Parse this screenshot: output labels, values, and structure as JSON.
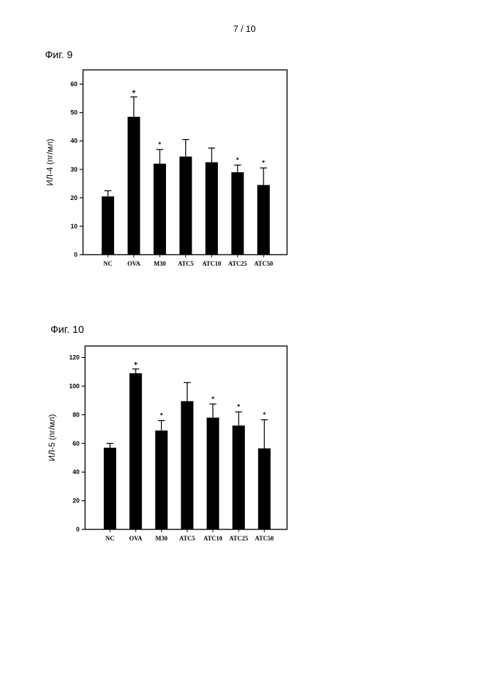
{
  "page": {
    "number": "7 / 10"
  },
  "figures": [
    {
      "label": "Фиг. 9"
    },
    {
      "label": "Фиг. 10"
    }
  ],
  "chart_data": [
    {
      "type": "bar",
      "title": "",
      "xlabel": "",
      "ylabel": "ИЛ-4 (пг/мл)",
      "ylim": [
        0,
        65
      ],
      "yticks": [
        0,
        10,
        20,
        30,
        40,
        50,
        60
      ],
      "ytick_labels": [
        "0",
        "10",
        "20",
        "30",
        "40",
        "50",
        "60"
      ],
      "categories": [
        "NC",
        "OVA",
        "M30",
        "ATC5",
        "ATC10",
        "ATC25",
        "ATC50"
      ],
      "values": [
        20.5,
        48.5,
        32,
        34.5,
        32.5,
        29,
        24.5
      ],
      "errors": [
        2,
        7,
        5,
        6,
        5,
        2.5,
        6
      ],
      "markers": [
        "",
        "+",
        "*",
        "",
        "",
        "*",
        "*"
      ],
      "grid": false,
      "color": "#000000"
    },
    {
      "type": "bar",
      "title": "",
      "xlabel": "",
      "ylabel": "ИЛ-5 (пг/мл)",
      "ylim": [
        0,
        128
      ],
      "yticks": [
        0,
        20,
        40,
        60,
        80,
        100,
        120
      ],
      "ytick_labels": [
        "0",
        "20",
        "40",
        "60",
        "80",
        "100",
        "120"
      ],
      "categories": [
        "NC",
        "OVA",
        "M30",
        "ATC5",
        "ATC10",
        "ATC25",
        "ATC50"
      ],
      "values": [
        57,
        109,
        69,
        89.5,
        78,
        72.5,
        56.5
      ],
      "errors": [
        3,
        3,
        7,
        13,
        9.5,
        9.5,
        20
      ],
      "markers": [
        "",
        "+",
        "*",
        "",
        "*",
        "*",
        "*"
      ],
      "grid": false,
      "color": "#000000"
    }
  ]
}
